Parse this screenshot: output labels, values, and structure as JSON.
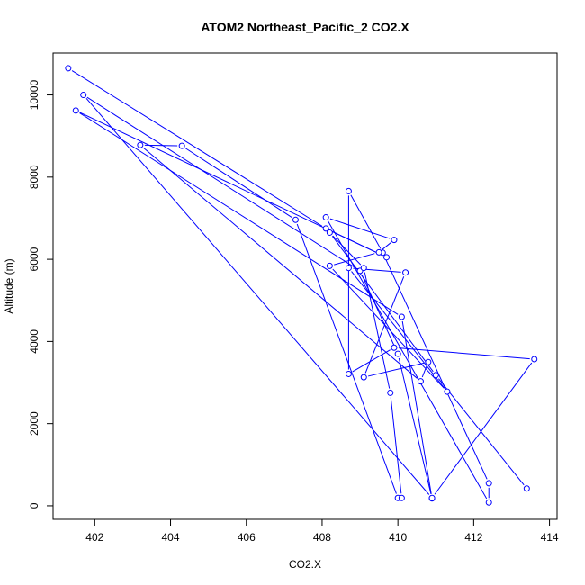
{
  "chart_data": {
    "type": "line",
    "title": "ATOM2 Northeast_Pacific_2 CO2.X",
    "xlabel": "CO2.X",
    "ylabel": "Altitude (m)",
    "xlim": [
      400.9,
      414.2
    ],
    "ylim": [
      -330,
      11020
    ],
    "xticks": [
      402,
      404,
      406,
      408,
      410,
      412,
      414
    ],
    "yticks": [
      0,
      2000,
      4000,
      6000,
      8000,
      10000
    ],
    "grid": false,
    "legend": "none",
    "series_color": "#0000ff",
    "series": [
      {
        "x": [
          401.3,
          408.1,
          409.7,
          401.5,
          410.1,
          410.9,
          410.0,
          409.0,
          401.7,
          410.9,
          413.6,
          409.9,
          408.7,
          408.7,
          409.6,
          412.4,
          412.4,
          408.1,
          409.9,
          409.5,
          408.2,
          411.3,
          408.7,
          410.2,
          409.1,
          410.8,
          410.6,
          403.2,
          404.3,
          407.3,
          410.0,
          410.1,
          409.8,
          409.1,
          408.2,
          411.0,
          413.4
        ],
        "y": [
          10650,
          6750,
          6050,
          9620,
          4600,
          180,
          3700,
          5720,
          10000,
          190,
          3570,
          3850,
          3210,
          7660,
          6160,
          550,
          80,
          7020,
          6470,
          6170,
          5840,
          2780,
          5790,
          5680,
          3130,
          3500,
          3030,
          8780,
          8760,
          6960,
          190,
          190,
          2750,
          5790,
          6650,
          3180,
          420
        ]
      }
    ]
  }
}
